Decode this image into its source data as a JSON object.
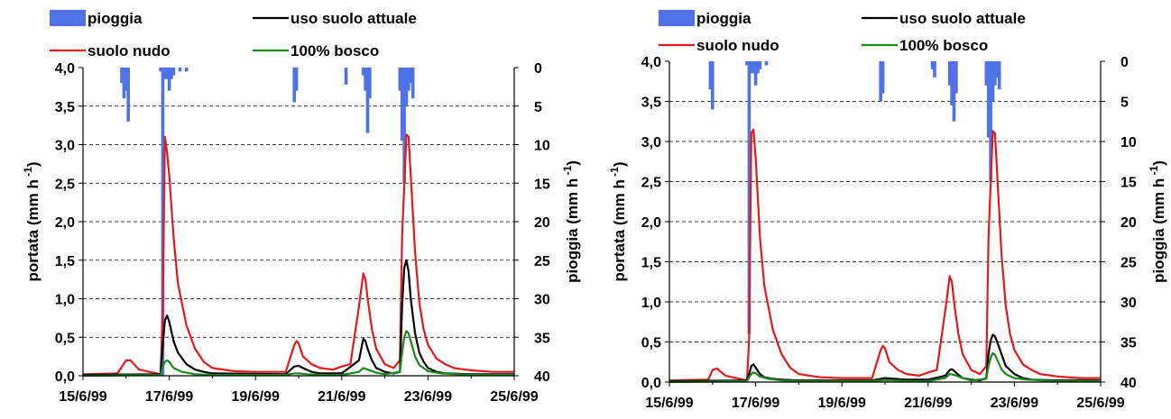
{
  "chart_data": [
    {
      "type": "line",
      "ylabel": "portata (mm h -1)",
      "ylabel_main": "portata (mm h",
      "ylabel_exp": "-1",
      "y2label": "pioggia (mm h -1)",
      "y2label_main": "pioggia (mm h",
      "y2label_exp": "-1",
      "ylim": [
        0,
        4
      ],
      "y2lim": [
        40,
        0
      ],
      "yticks": [
        "0,0",
        "0,5",
        "1,0",
        "1,5",
        "2,0",
        "2,5",
        "3,0",
        "3,5",
        "4,0"
      ],
      "y2ticks": [
        "40",
        "35",
        "30",
        "25",
        "20",
        "15",
        "10",
        "5",
        "0"
      ],
      "xticks": [
        "15/6/99",
        "17/6/99",
        "19/6/99",
        "21/6/99",
        "23/6/99",
        "25/6/99"
      ],
      "xlim": [
        0,
        10
      ],
      "grid": "horizontal-dashed",
      "legend_placement": "top",
      "legend": [
        {
          "label": "pioggia",
          "kind": "bar",
          "color": "#4f73e6"
        },
        {
          "label": "uso suolo attuale",
          "kind": "line",
          "color": "#000000"
        },
        {
          "label": "suolo nudo",
          "kind": "line",
          "color": "#e31a1c"
        },
        {
          "label": "100% bosco",
          "kind": "line",
          "color": "#1a8a1a"
        }
      ],
      "rain": {
        "name": "pioggia",
        "x": [
          0.9,
          0.95,
          1.0,
          1.05,
          1.8,
          1.85,
          1.9,
          1.95,
          2.0,
          2.05,
          2.1,
          2.25,
          2.4,
          4.9,
          4.95,
          6.1,
          6.5,
          6.55,
          6.6,
          6.65,
          7.35,
          7.4,
          7.45,
          7.5,
          7.55,
          7.6,
          7.65
        ],
        "values": [
          2,
          4,
          3,
          7,
          0.5,
          40,
          1.5,
          1.5,
          3,
          1.5,
          1,
          0.5,
          0.5,
          4.5,
          3,
          2.2,
          1,
          3,
          8.5,
          4,
          3,
          9.5,
          15,
          5,
          3,
          2,
          4
        ]
      },
      "series": [
        {
          "name": "suolo nudo",
          "color": "#e31a1c",
          "x": [
            0,
            0.8,
            1.0,
            1.1,
            1.3,
            1.8,
            1.85,
            1.9,
            1.95,
            2.0,
            2.1,
            2.2,
            2.4,
            2.6,
            2.8,
            3.0,
            3.5,
            4.0,
            4.7,
            4.9,
            4.95,
            5.0,
            5.1,
            5.3,
            5.5,
            5.8,
            6.0,
            6.2,
            6.4,
            6.5,
            6.55,
            6.6,
            6.7,
            6.8,
            7.0,
            7.2,
            7.35,
            7.4,
            7.5,
            7.55,
            7.6,
            7.7,
            7.8,
            7.9,
            8.0,
            8.2,
            8.4,
            8.6,
            9.0,
            9.5,
            10
          ],
          "y": [
            0.02,
            0.03,
            0.2,
            0.2,
            0.08,
            0.02,
            0.85,
            3.1,
            2.9,
            2.6,
            1.8,
            1.2,
            0.65,
            0.35,
            0.18,
            0.1,
            0.06,
            0.05,
            0.05,
            0.4,
            0.45,
            0.42,
            0.25,
            0.15,
            0.1,
            0.08,
            0.12,
            0.15,
            0.9,
            1.33,
            1.25,
            1.0,
            0.6,
            0.35,
            0.15,
            0.1,
            0.2,
            1.8,
            3.13,
            3.1,
            2.6,
            1.6,
            0.95,
            0.6,
            0.4,
            0.22,
            0.15,
            0.1,
            0.07,
            0.05,
            0.05
          ]
        },
        {
          "name": "uso suolo attuale",
          "color": "#000000",
          "x": [
            0,
            1.8,
            1.85,
            1.9,
            1.95,
            2.0,
            2.1,
            2.2,
            2.4,
            2.6,
            2.8,
            3.0,
            4.7,
            4.9,
            5.0,
            5.1,
            5.3,
            5.5,
            6.0,
            6.4,
            6.5,
            6.55,
            6.6,
            6.7,
            6.8,
            7.0,
            7.2,
            7.35,
            7.4,
            7.45,
            7.5,
            7.55,
            7.6,
            7.7,
            7.8,
            7.9,
            8.0,
            8.2,
            8.4,
            9.0,
            10
          ],
          "y": [
            0.01,
            0.02,
            0.4,
            0.72,
            0.78,
            0.7,
            0.45,
            0.3,
            0.15,
            0.08,
            0.05,
            0.03,
            0.02,
            0.12,
            0.13,
            0.1,
            0.05,
            0.03,
            0.03,
            0.2,
            0.48,
            0.45,
            0.35,
            0.2,
            0.1,
            0.05,
            0.03,
            0.05,
            0.9,
            1.4,
            1.5,
            1.35,
            1.0,
            0.55,
            0.3,
            0.18,
            0.1,
            0.05,
            0.03,
            0.02,
            0.02
          ]
        },
        {
          "name": "100% bosco",
          "color": "#1a8a1a",
          "x": [
            0,
            1.8,
            1.85,
            1.9,
            1.95,
            2.0,
            2.1,
            2.3,
            2.6,
            3.0,
            4.7,
            4.9,
            5.0,
            5.2,
            5.5,
            6.0,
            6.4,
            6.5,
            6.6,
            6.8,
            7.0,
            7.35,
            7.4,
            7.45,
            7.5,
            7.55,
            7.6,
            7.7,
            7.8,
            8.0,
            8.3,
            9.0,
            10
          ],
          "y": [
            0,
            0.01,
            0.12,
            0.18,
            0.2,
            0.18,
            0.1,
            0.05,
            0.02,
            0.01,
            0.01,
            0.03,
            0.03,
            0.02,
            0.01,
            0.01,
            0.05,
            0.1,
            0.08,
            0.04,
            0.02,
            0.05,
            0.3,
            0.5,
            0.58,
            0.55,
            0.45,
            0.25,
            0.14,
            0.06,
            0.03,
            0.01,
            0.01
          ]
        }
      ]
    },
    {
      "type": "line",
      "ylabel": "portata (mm h -1)",
      "ylabel_main": "portata (mm h",
      "ylabel_exp": "-1",
      "y2label": "pioggia (mm h -1)",
      "y2label_main": "pioggia (mm h",
      "y2label_exp": "-1",
      "ylim": [
        0,
        4
      ],
      "y2lim": [
        40,
        0
      ],
      "yticks": [
        "0,0",
        "0,5",
        "1,0",
        "1,5",
        "2,0",
        "2,5",
        "3,0",
        "3,5",
        "4,0"
      ],
      "y2ticks": [
        "40",
        "35",
        "30",
        "25",
        "20",
        "15",
        "10",
        "5",
        "0"
      ],
      "xticks": [
        "15/6/99",
        "17/6/99",
        "19/6/99",
        "21/6/99",
        "23/6/99",
        "25/6/99"
      ],
      "xlim": [
        0,
        10
      ],
      "grid": "horizontal-dashed",
      "legend_placement": "top",
      "legend": [
        {
          "label": "pioggia",
          "kind": "bar",
          "color": "#4f73e6"
        },
        {
          "label": "uso suolo attuale",
          "kind": "line",
          "color": "#000000"
        },
        {
          "label": "suolo nudo",
          "kind": "line",
          "color": "#e31a1c"
        },
        {
          "label": "100% bosco",
          "kind": "line",
          "color": "#1a8a1a"
        }
      ],
      "rain": {
        "name": "pioggia",
        "x": [
          0.95,
          1.0,
          1.8,
          1.85,
          1.9,
          1.95,
          2.0,
          2.05,
          2.1,
          2.25,
          4.9,
          4.95,
          6.1,
          6.15,
          6.5,
          6.55,
          6.6,
          6.65,
          7.35,
          7.4,
          7.45,
          7.5,
          7.55,
          7.6,
          7.65
        ],
        "values": [
          3.5,
          6,
          0.5,
          34,
          1.5,
          1.5,
          3,
          1.5,
          1,
          0.5,
          5,
          4,
          1,
          2,
          3,
          5.5,
          7.5,
          4,
          3,
          9.5,
          15,
          5,
          3,
          2,
          3.5
        ]
      },
      "series": [
        {
          "name": "suolo nudo",
          "color": "#e31a1c",
          "x": [
            0,
            0.9,
            1.0,
            1.1,
            1.3,
            1.8,
            1.85,
            1.9,
            1.95,
            2.0,
            2.05,
            2.1,
            2.2,
            2.4,
            2.6,
            2.8,
            3.0,
            3.5,
            4.0,
            4.7,
            4.9,
            4.95,
            5.0,
            5.1,
            5.3,
            5.5,
            5.8,
            6.0,
            6.2,
            6.4,
            6.5,
            6.55,
            6.6,
            6.7,
            6.8,
            7.0,
            7.2,
            7.35,
            7.4,
            7.5,
            7.55,
            7.6,
            7.7,
            7.8,
            7.9,
            8.0,
            8.2,
            8.4,
            8.6,
            9.0,
            9.5,
            10
          ],
          "y": [
            0.02,
            0.03,
            0.15,
            0.17,
            0.08,
            0.02,
            0.55,
            3.1,
            3.15,
            2.8,
            2.3,
            1.8,
            1.2,
            0.65,
            0.35,
            0.18,
            0.1,
            0.06,
            0.05,
            0.05,
            0.4,
            0.45,
            0.42,
            0.25,
            0.15,
            0.1,
            0.08,
            0.12,
            0.15,
            0.9,
            1.32,
            1.25,
            1.0,
            0.6,
            0.35,
            0.15,
            0.1,
            0.2,
            1.8,
            3.13,
            3.1,
            2.6,
            1.6,
            0.95,
            0.6,
            0.4,
            0.22,
            0.15,
            0.1,
            0.07,
            0.05,
            0.05
          ]
        },
        {
          "name": "uso suolo attuale",
          "color": "#000000",
          "x": [
            0,
            1.8,
            1.85,
            1.9,
            1.95,
            2.0,
            2.1,
            2.2,
            2.4,
            2.6,
            3.0,
            4.7,
            4.9,
            5.0,
            5.2,
            5.5,
            6.0,
            6.4,
            6.5,
            6.55,
            6.6,
            6.7,
            6.8,
            7.0,
            7.2,
            7.35,
            7.4,
            7.45,
            7.5,
            7.55,
            7.6,
            7.7,
            7.8,
            8.0,
            8.2,
            8.4,
            9.0,
            10
          ],
          "y": [
            0.01,
            0.02,
            0.1,
            0.2,
            0.22,
            0.18,
            0.1,
            0.06,
            0.04,
            0.03,
            0.02,
            0.02,
            0.04,
            0.05,
            0.04,
            0.03,
            0.03,
            0.08,
            0.15,
            0.16,
            0.14,
            0.09,
            0.05,
            0.03,
            0.02,
            0.05,
            0.35,
            0.52,
            0.59,
            0.57,
            0.5,
            0.35,
            0.2,
            0.1,
            0.05,
            0.03,
            0.02,
            0.02
          ]
        },
        {
          "name": "100% bosco",
          "color": "#1a8a1a",
          "x": [
            0,
            1.8,
            1.85,
            1.9,
            1.95,
            2.0,
            2.1,
            2.3,
            2.6,
            3.0,
            4.7,
            4.9,
            5.0,
            5.2,
            5.5,
            6.0,
            6.4,
            6.5,
            6.6,
            6.8,
            7.0,
            7.35,
            7.4,
            7.45,
            7.5,
            7.55,
            7.6,
            7.7,
            7.8,
            8.0,
            8.3,
            9.0,
            10
          ],
          "y": [
            0,
            0.01,
            0.06,
            0.1,
            0.12,
            0.11,
            0.07,
            0.04,
            0.02,
            0.01,
            0.01,
            0.02,
            0.02,
            0.02,
            0.01,
            0.01,
            0.05,
            0.1,
            0.09,
            0.05,
            0.02,
            0.04,
            0.2,
            0.3,
            0.36,
            0.34,
            0.28,
            0.16,
            0.1,
            0.05,
            0.03,
            0.01,
            0.01
          ]
        }
      ]
    }
  ]
}
